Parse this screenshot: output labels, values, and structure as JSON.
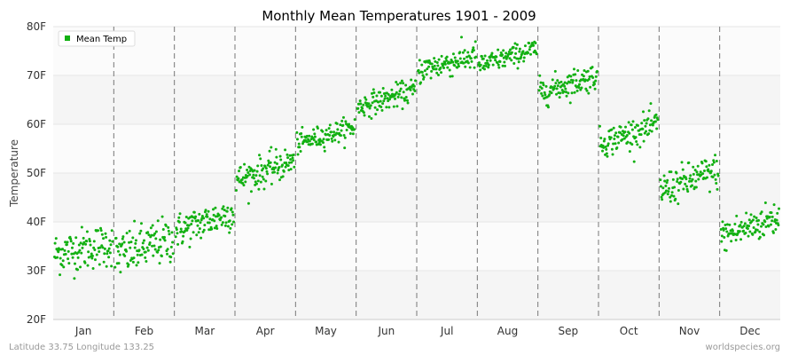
{
  "chart_data": {
    "type": "scatter",
    "title": "Monthly Mean Temperatures 1901 - 2009",
    "ylabel": "Temperature",
    "xlabel": "",
    "ylim": [
      20,
      80
    ],
    "yticks": [
      "20F",
      "30F",
      "40F",
      "50F",
      "60F",
      "70F",
      "80F"
    ],
    "categories": [
      "Jan",
      "Feb",
      "Mar",
      "Apr",
      "May",
      "Jun",
      "Jul",
      "Aug",
      "Sep",
      "Oct",
      "Nov",
      "Dec"
    ],
    "years": [
      1901,
      2009
    ],
    "series": [
      {
        "name": "Mean Temp",
        "color": "#12b012",
        "monthly_ranges": [
          {
            "month": "Jan",
            "start": 33.5,
            "end": 35.5,
            "spread": 2.2
          },
          {
            "month": "Feb",
            "start": 33.0,
            "end": 36.5,
            "spread": 2.4
          },
          {
            "month": "Mar",
            "start": 38.0,
            "end": 42.0,
            "spread": 1.8
          },
          {
            "month": "Apr",
            "start": 48.5,
            "end": 52.5,
            "spread": 1.6
          },
          {
            "month": "May",
            "start": 56.0,
            "end": 59.5,
            "spread": 1.1
          },
          {
            "month": "Jun",
            "start": 63.5,
            "end": 67.0,
            "spread": 1.2
          },
          {
            "month": "Jul",
            "start": 71.0,
            "end": 74.0,
            "spread": 1.4
          },
          {
            "month": "Aug",
            "start": 72.0,
            "end": 75.5,
            "spread": 1.1
          },
          {
            "month": "Sep",
            "start": 66.5,
            "end": 70.0,
            "spread": 1.4
          },
          {
            "month": "Oct",
            "start": 56.0,
            "end": 60.0,
            "spread": 1.5
          },
          {
            "month": "Nov",
            "start": 46.5,
            "end": 50.5,
            "spread": 1.8
          },
          {
            "month": "Dec",
            "start": 37.0,
            "end": 41.0,
            "spread": 1.8
          }
        ]
      }
    ],
    "grid": true,
    "legend": "top-left"
  },
  "footer": {
    "left": "Latitude 33.75 Longitude 133.25",
    "right": "worldspecies.org"
  }
}
